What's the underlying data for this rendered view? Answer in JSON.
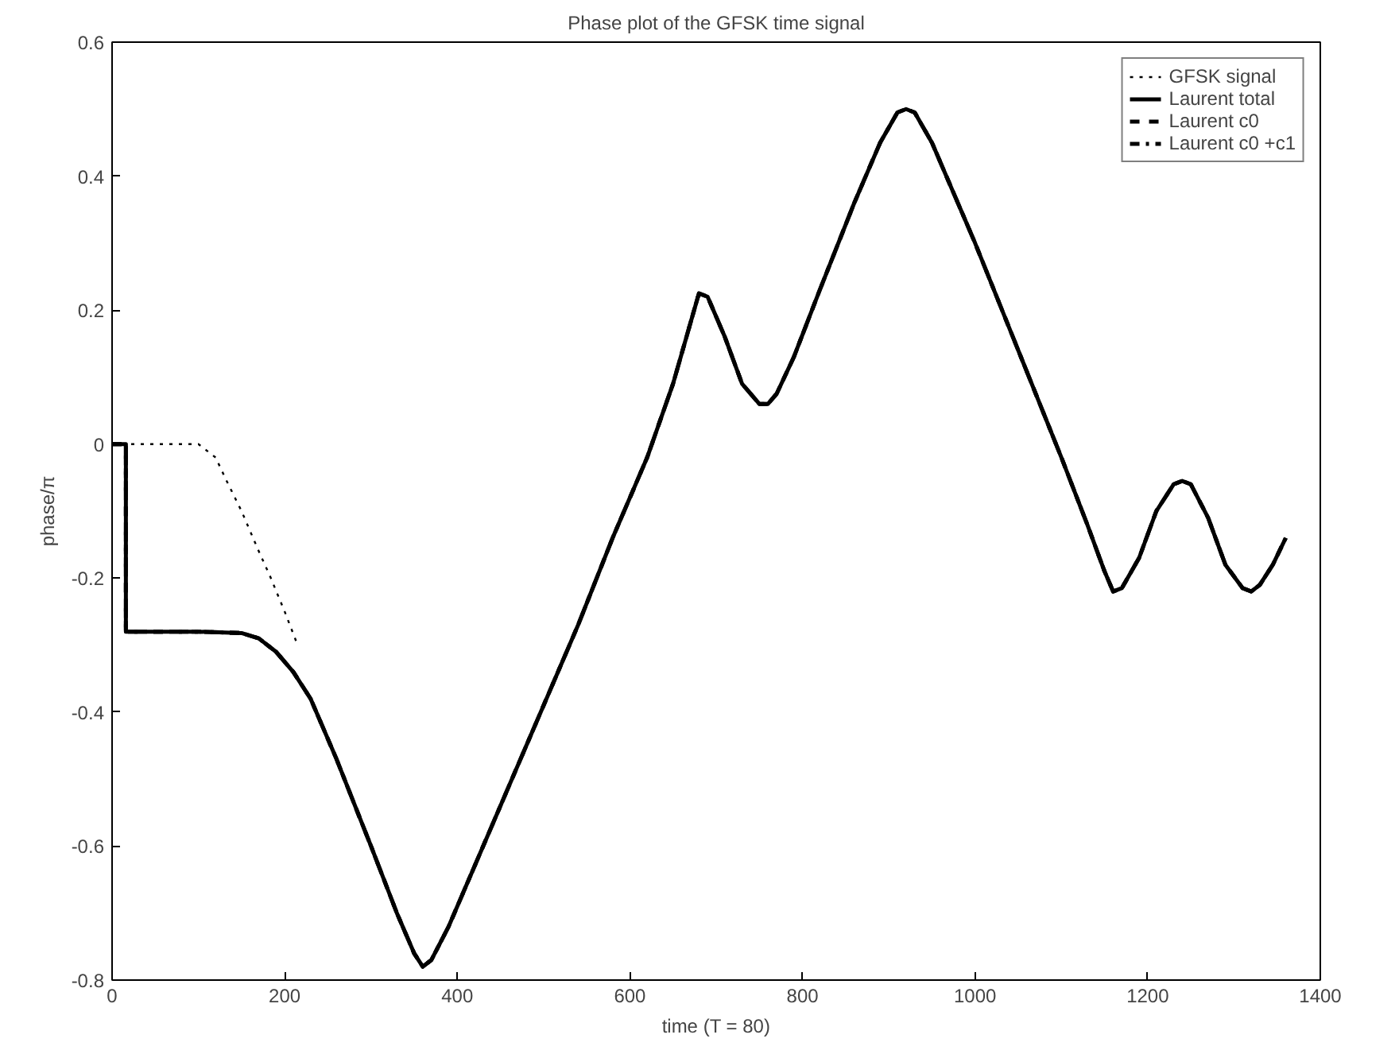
{
  "chart_data": {
    "type": "line",
    "title": "Phase plot of the GFSK time signal",
    "xlabel": "time (T = 80)",
    "ylabel": "phase/π",
    "xlim": [
      0,
      1400
    ],
    "ylim": [
      -0.8,
      0.6
    ],
    "xticks": [
      0,
      200,
      400,
      600,
      800,
      1000,
      1200,
      1400
    ],
    "yticks": [
      {
        "value": -0.8,
        "label": "-0.8"
      },
      {
        "value": -0.6,
        "label": "-0.6"
      },
      {
        "value": -0.4,
        "label": "-0.4"
      },
      {
        "value": -0.2,
        "label": "-0.2"
      },
      {
        "value": 0,
        "label": "0"
      },
      {
        "value": 0.2,
        "label": "0.2"
      },
      {
        "value": 0.4,
        "label": "0.4"
      },
      {
        "value": 0.6,
        "label": "0.6"
      }
    ],
    "grid": false,
    "legend": "top right",
    "marker": "none",
    "series": [
      {
        "name": "GFSK signal",
        "color": "#000000",
        "line_style": "dotted",
        "x": [
          0,
          50,
          100,
          120,
          132,
          150,
          170,
          183,
          200,
          215
        ],
        "values": [
          0,
          0,
          0,
          -0.02,
          -0.053,
          -0.1,
          -0.16,
          -0.197,
          -0.25,
          -0.3
        ]
      },
      {
        "name": "Laurent total",
        "color": "#000000",
        "line_style": "solid",
        "x": [
          0,
          16,
          16,
          50,
          100,
          150,
          170,
          190,
          210,
          230,
          260,
          300,
          330,
          350,
          360,
          370,
          390,
          420,
          460,
          500,
          540,
          580,
          620,
          650,
          670,
          680,
          690,
          710,
          730,
          750,
          760,
          770,
          790,
          820,
          860,
          890,
          910,
          920,
          930,
          950,
          1000,
          1050,
          1100,
          1130,
          1150,
          1160,
          1170,
          1190,
          1210,
          1230,
          1240,
          1250,
          1270,
          1290,
          1310,
          1320,
          1330,
          1345,
          1360
        ],
        "values": [
          0,
          0,
          -0.28,
          -0.28,
          -0.28,
          -0.282,
          -0.29,
          -0.31,
          -0.34,
          -0.38,
          -0.47,
          -0.6,
          -0.7,
          -0.76,
          -0.78,
          -0.77,
          -0.72,
          -0.63,
          -0.51,
          -0.39,
          -0.27,
          -0.14,
          -0.02,
          0.09,
          0.18,
          0.225,
          0.22,
          0.16,
          0.09,
          0.06,
          0.06,
          0.075,
          0.13,
          0.23,
          0.36,
          0.45,
          0.495,
          0.5,
          0.495,
          0.45,
          0.3,
          0.14,
          -0.02,
          -0.12,
          -0.19,
          -0.22,
          -0.215,
          -0.17,
          -0.1,
          -0.06,
          -0.055,
          -0.06,
          -0.11,
          -0.18,
          -0.215,
          -0.22,
          -0.21,
          -0.18,
          -0.14
        ]
      },
      {
        "name": "Laurent c0",
        "color": "#000000",
        "line_style": "dashed",
        "x": [
          0,
          16,
          16,
          50,
          100,
          150,
          170,
          190,
          210,
          230,
          260,
          300,
          330,
          350,
          360,
          370,
          390,
          420,
          460,
          500,
          540,
          580,
          620,
          650,
          670,
          680,
          690,
          710,
          730,
          750,
          760,
          770,
          790,
          820,
          860,
          890,
          910,
          920,
          930,
          950,
          1000,
          1050,
          1100,
          1130,
          1150,
          1160,
          1170,
          1190,
          1210,
          1230,
          1240,
          1250,
          1270,
          1290,
          1310,
          1320,
          1330,
          1345,
          1360
        ],
        "values": [
          0,
          0,
          -0.28,
          -0.28,
          -0.28,
          -0.282,
          -0.29,
          -0.31,
          -0.34,
          -0.38,
          -0.47,
          -0.6,
          -0.7,
          -0.76,
          -0.78,
          -0.77,
          -0.72,
          -0.63,
          -0.51,
          -0.39,
          -0.27,
          -0.14,
          -0.02,
          0.09,
          0.18,
          0.225,
          0.22,
          0.16,
          0.09,
          0.06,
          0.06,
          0.075,
          0.13,
          0.23,
          0.36,
          0.45,
          0.495,
          0.5,
          0.495,
          0.45,
          0.3,
          0.14,
          -0.02,
          -0.12,
          -0.19,
          -0.22,
          -0.215,
          -0.17,
          -0.1,
          -0.06,
          -0.055,
          -0.06,
          -0.11,
          -0.18,
          -0.215,
          -0.22,
          -0.21,
          -0.18,
          -0.14
        ]
      },
      {
        "name": "Laurent c0 +c1",
        "color": "#000000",
        "line_style": "dashdot",
        "x": [
          0,
          16,
          16,
          50,
          100,
          150,
          170,
          190,
          210,
          230,
          260,
          300,
          330,
          350,
          360,
          370,
          390,
          420,
          460,
          500,
          540,
          580,
          620,
          650,
          670,
          680,
          690,
          710,
          730,
          750,
          760,
          770,
          790,
          820,
          860,
          890,
          910,
          920,
          930,
          950,
          1000,
          1050,
          1100,
          1130,
          1150,
          1160,
          1170,
          1190,
          1210,
          1230,
          1240,
          1250,
          1270,
          1290,
          1310,
          1320,
          1330,
          1345,
          1360
        ],
        "values": [
          0,
          0,
          -0.28,
          -0.28,
          -0.28,
          -0.282,
          -0.29,
          -0.31,
          -0.34,
          -0.38,
          -0.47,
          -0.6,
          -0.7,
          -0.76,
          -0.78,
          -0.77,
          -0.72,
          -0.63,
          -0.51,
          -0.39,
          -0.27,
          -0.14,
          -0.02,
          0.09,
          0.18,
          0.225,
          0.22,
          0.16,
          0.09,
          0.06,
          0.06,
          0.075,
          0.13,
          0.23,
          0.36,
          0.45,
          0.495,
          0.5,
          0.495,
          0.45,
          0.3,
          0.14,
          -0.02,
          -0.12,
          -0.19,
          -0.22,
          -0.215,
          -0.17,
          -0.1,
          -0.06,
          -0.055,
          -0.06,
          -0.11,
          -0.18,
          -0.215,
          -0.22,
          -0.21,
          -0.18,
          -0.14
        ]
      }
    ]
  }
}
